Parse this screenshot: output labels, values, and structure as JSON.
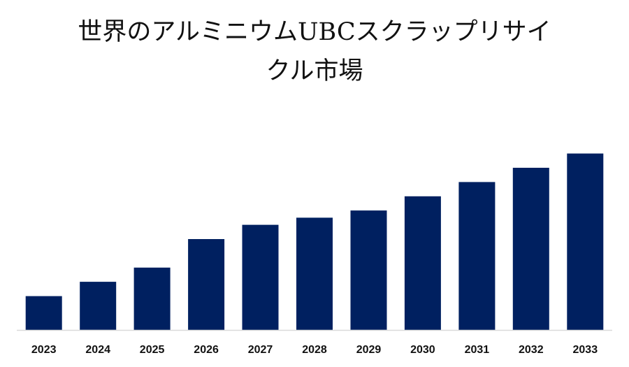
{
  "title": {
    "line1": "世界のアルミニウムUBCスクラップリサイ",
    "line2": "クル市場"
  },
  "colors": {
    "bar": "#002060",
    "axis": "#d9d9d9",
    "background": "#ffffff"
  },
  "chart_data": {
    "type": "bar",
    "title": "世界のアルミニウムUBCスクラップリサイクル市場",
    "categories": [
      "2023",
      "2024",
      "2025",
      "2026",
      "2027",
      "2028",
      "2029",
      "2030",
      "2031",
      "2032",
      "2033"
    ],
    "values": [
      19,
      27,
      35,
      51,
      59,
      63,
      67,
      75,
      83,
      91,
      99
    ],
    "xlabel": "",
    "ylabel": "",
    "ylim": [
      0,
      100
    ],
    "grid": false,
    "legend": "none"
  }
}
